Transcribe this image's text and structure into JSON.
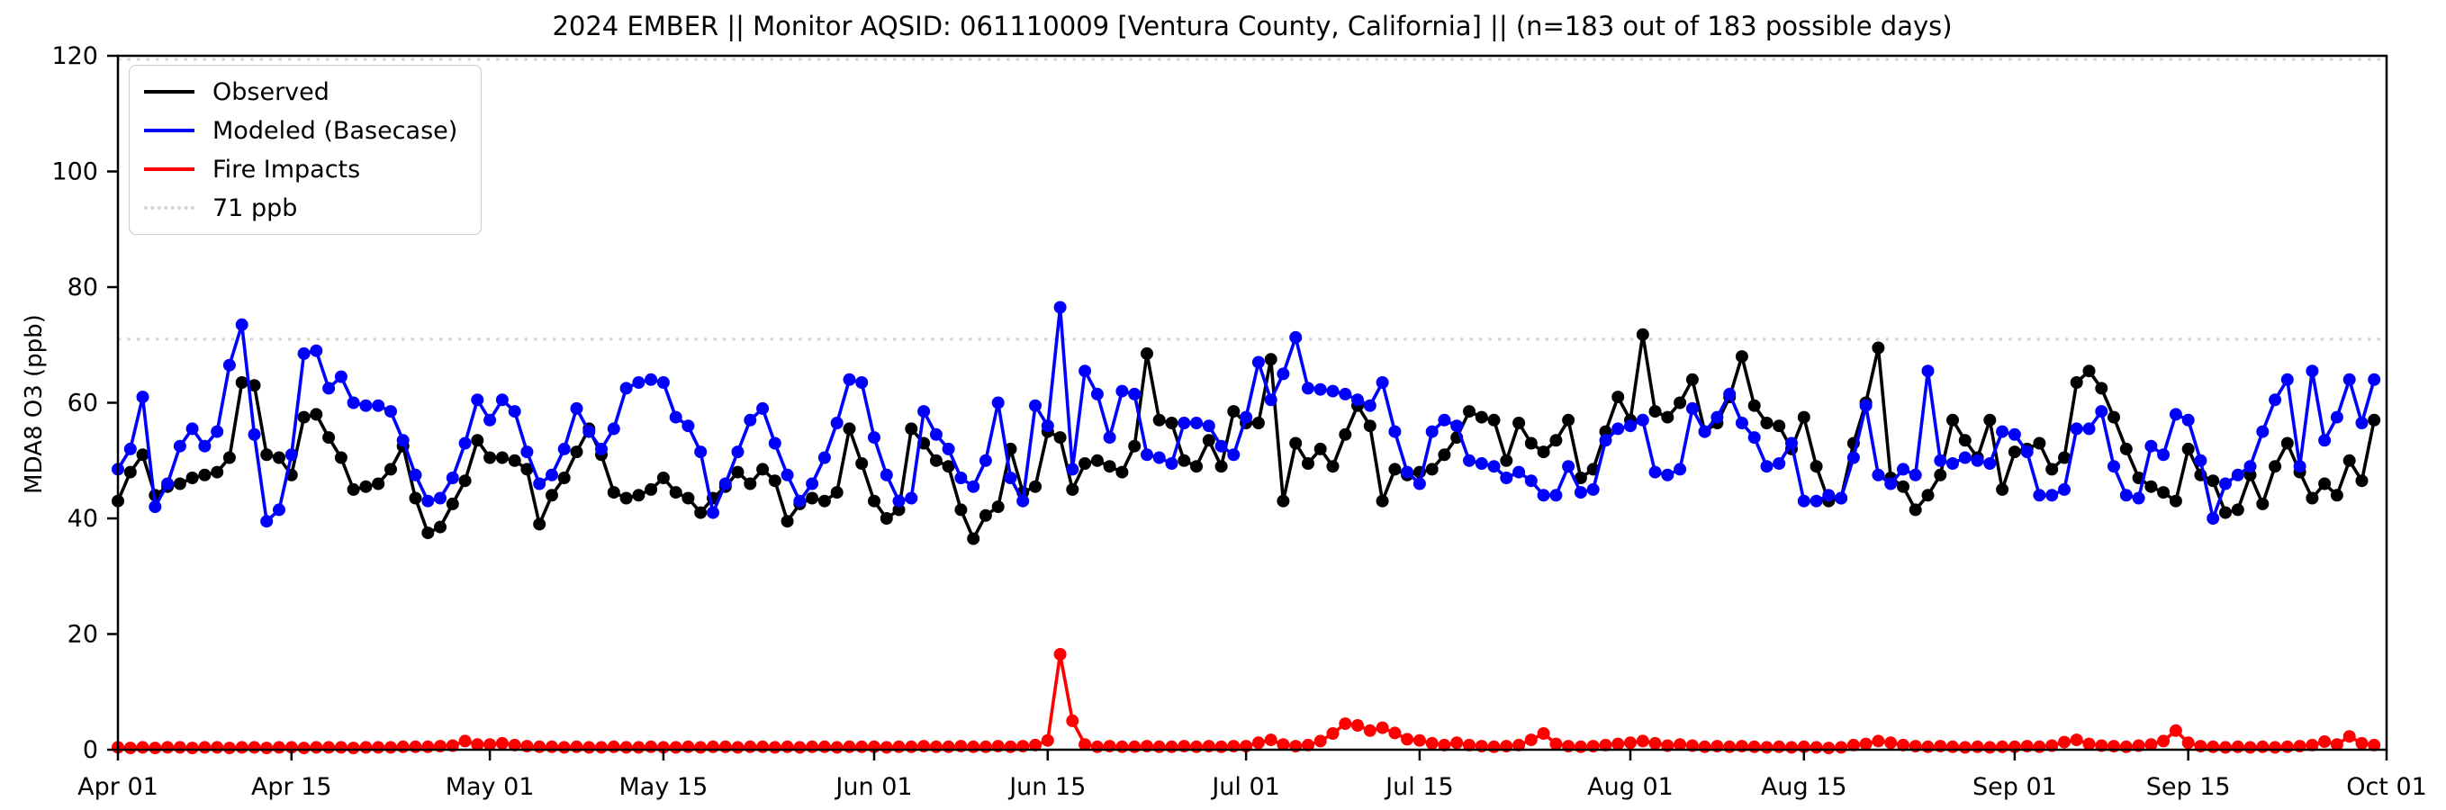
{
  "chart_data": {
    "type": "line",
    "title": "2024 EMBER || Monitor AQSID: 061110009 [Ventura County, California] || (n=183 out of 183 possible days)",
    "ylabel": "MDA8 O3 (ppb)",
    "ylim": [
      0,
      120
    ],
    "yticks": [
      0,
      20,
      40,
      60,
      80,
      100,
      120
    ],
    "n_days": 183,
    "x_tick_days": [
      0,
      14,
      30,
      44,
      61,
      75,
      91,
      105,
      122,
      136,
      153,
      167,
      183
    ],
    "x_tick_labels": [
      "Apr 01",
      "Apr 15",
      "May 01",
      "May 15",
      "Jun 01",
      "Jun 15",
      "Jul 01",
      "Jul 15",
      "Aug 01",
      "Aug 15",
      "Sep 01",
      "Sep 15",
      "Oct 01"
    ],
    "grid": "off",
    "legend_position": "upper-left",
    "threshold": {
      "value": 71,
      "label": "71 ppb",
      "color": "#d3d3d3"
    },
    "series": [
      {
        "name": "Observed",
        "color": "#000000",
        "values": [
          43,
          48,
          51,
          44,
          45.5,
          46,
          47,
          47.5,
          48,
          50.5,
          63.5,
          63,
          51,
          50.5,
          47.5,
          57.5,
          58,
          54,
          50.5,
          45,
          45.5,
          46,
          48.5,
          52.5,
          43.5,
          37.5,
          38.5,
          42.5,
          46.5,
          53.5,
          50.5,
          50.5,
          50,
          48.5,
          39,
          44,
          47,
          51.5,
          55.5,
          51,
          44.5,
          43.5,
          44,
          45,
          47,
          44.5,
          43.5,
          41,
          43.5,
          45.5,
          48,
          46,
          48.5,
          46.5,
          39.5,
          42.5,
          43.5,
          43,
          44.5,
          55.5,
          49.5,
          43,
          40,
          41.5,
          55.5,
          53,
          50,
          49,
          41.5,
          36.5,
          40.5,
          42,
          52,
          44.5,
          45.5,
          55,
          54,
          45,
          49.5,
          50,
          49,
          48,
          52.5,
          68.5,
          57,
          56.5,
          50,
          49,
          53.5,
          49,
          58.5,
          56.5,
          56.5,
          67.5,
          43,
          53,
          49.5,
          52,
          49,
          54.5,
          59.5,
          56,
          43,
          48.5,
          47.5,
          48,
          48.5,
          51,
          54,
          58.5,
          57.5,
          57,
          50,
          56.5,
          53,
          51.5,
          53.5,
          57,
          47,
          48.5,
          55,
          61,
          57,
          71.8,
          58.5,
          57.5,
          60,
          64,
          55,
          56.5,
          61,
          68,
          59.5,
          56.5,
          56,
          52,
          57.5,
          49,
          43,
          43.5,
          53,
          60,
          69.5,
          47,
          45.5,
          41.5,
          44,
          47.5,
          57,
          53.5,
          50.5,
          57,
          45,
          51.5,
          52,
          53,
          48.5,
          50.5,
          63.5,
          65.5,
          62.5,
          57.5,
          52,
          47,
          45.5,
          44.5,
          43,
          52,
          47.5,
          46.5,
          41,
          41.5,
          47.5,
          42.5,
          49,
          53,
          48,
          43.5,
          46,
          44,
          50,
          46.5,
          57
        ]
      },
      {
        "name": "Modeled (Basecase)",
        "color": "#0000ff",
        "values": [
          48.5,
          52,
          61,
          42,
          46,
          52.5,
          55.5,
          52.5,
          55,
          66.5,
          73.5,
          54.5,
          39.5,
          41.5,
          51,
          68.5,
          69,
          62.5,
          64.5,
          60,
          59.5,
          59.5,
          58.5,
          53.5,
          47.5,
          43,
          43.5,
          47,
          53,
          60.5,
          57,
          60.5,
          58.5,
          51.5,
          46,
          47.5,
          52,
          59,
          55,
          52,
          55.5,
          62.5,
          63.5,
          64,
          63.5,
          57.5,
          56,
          51.5,
          41,
          46,
          51.5,
          57,
          59,
          53,
          47.5,
          43,
          46,
          50.5,
          56.5,
          64,
          63.5,
          54,
          47.5,
          43,
          43.5,
          58.5,
          54.5,
          52,
          47,
          45.5,
          50,
          60,
          47,
          43,
          59.5,
          56,
          76.5,
          48.5,
          65.5,
          61.5,
          54,
          62,
          61.5,
          51,
          50.5,
          49.5,
          56.5,
          56.5,
          56,
          52.5,
          51,
          57.5,
          67,
          60.5,
          65,
          71.3,
          62.5,
          62.3,
          62,
          61.5,
          60.5,
          59.5,
          63.5,
          55,
          48,
          46,
          55,
          57,
          56,
          50,
          49.5,
          49,
          47,
          48,
          46.5,
          44,
          44,
          49,
          44.5,
          45,
          53.5,
          55.5,
          56,
          57,
          48,
          47.5,
          48.5,
          59,
          55,
          57.5,
          61.5,
          56.5,
          54,
          49,
          49.5,
          53,
          43,
          43,
          44,
          43.5,
          50.5,
          59.5,
          47.5,
          46,
          48.5,
          47.5,
          65.5,
          50,
          49.5,
          50.5,
          50,
          49.5,
          55,
          54.5,
          51.5,
          44,
          44,
          45,
          55.5,
          55.5,
          58.5,
          49,
          44,
          43.5,
          52.5,
          51,
          58,
          57,
          50,
          40,
          46,
          47.5,
          49,
          55,
          60.5,
          64,
          49,
          65.5,
          53.5,
          57.5,
          64,
          56.5,
          64
        ]
      },
      {
        "name": "Fire Impacts",
        "color": "#ff0000",
        "values": [
          0.4,
          0.3,
          0.4,
          0.3,
          0.4,
          0.4,
          0.3,
          0.4,
          0.4,
          0.3,
          0.4,
          0.4,
          0.3,
          0.4,
          0.4,
          0.3,
          0.4,
          0.4,
          0.4,
          0.3,
          0.4,
          0.4,
          0.4,
          0.5,
          0.5,
          0.5,
          0.6,
          0.7,
          1.5,
          0.9,
          0.9,
          1.1,
          0.8,
          0.6,
          0.5,
          0.5,
          0.4,
          0.5,
          0.4,
          0.4,
          0.5,
          0.4,
          0.4,
          0.5,
          0.4,
          0.4,
          0.5,
          0.4,
          0.5,
          0.5,
          0.4,
          0.5,
          0.5,
          0.4,
          0.5,
          0.4,
          0.5,
          0.5,
          0.4,
          0.5,
          0.5,
          0.5,
          0.4,
          0.5,
          0.5,
          0.6,
          0.5,
          0.5,
          0.6,
          0.5,
          0.5,
          0.6,
          0.5,
          0.6,
          0.8,
          1.6,
          16.5,
          5.0,
          0.9,
          0.5,
          0.6,
          0.5,
          0.5,
          0.6,
          0.5,
          0.5,
          0.6,
          0.5,
          0.6,
          0.5,
          0.6,
          0.6,
          1.2,
          1.7,
          0.9,
          0.6,
          0.8,
          1.5,
          2.8,
          4.5,
          4.2,
          3.3,
          3.8,
          2.9,
          1.8,
          1.6,
          1.1,
          0.8,
          1.2,
          0.8,
          0.6,
          0.5,
          0.6,
          0.8,
          1.7,
          2.8,
          1.0,
          0.6,
          0.5,
          0.6,
          0.8,
          1.0,
          1.2,
          1.5,
          1.1,
          0.7,
          0.9,
          0.7,
          0.5,
          0.6,
          0.5,
          0.6,
          0.5,
          0.4,
          0.5,
          0.4,
          0.5,
          0.4,
          0.3,
          0.4,
          0.8,
          1.0,
          1.5,
          1.2,
          0.8,
          0.6,
          0.5,
          0.6,
          0.5,
          0.4,
          0.5,
          0.4,
          0.5,
          0.5,
          0.6,
          0.5,
          0.7,
          1.3,
          1.7,
          1.0,
          0.7,
          0.6,
          0.5,
          0.7,
          0.9,
          1.5,
          3.3,
          1.2,
          0.6,
          0.5,
          0.4,
          0.5,
          0.4,
          0.5,
          0.4,
          0.5,
          0.6,
          0.8,
          1.4,
          0.9,
          2.3,
          1.1,
          0.8
        ]
      }
    ]
  },
  "legend": {
    "items": [
      {
        "id": "observed",
        "label": "Observed",
        "color": "#000000",
        "style": "solid"
      },
      {
        "id": "modeled",
        "label": "Modeled (Basecase)",
        "color": "#0000ff",
        "style": "solid"
      },
      {
        "id": "fire-impacts",
        "label": "Fire Impacts",
        "color": "#ff0000",
        "style": "solid"
      },
      {
        "id": "threshold-71ppb",
        "label": "71 ppb",
        "color": "#d3d3d3",
        "style": "dotted"
      }
    ]
  },
  "colors": {
    "axis": "#000000",
    "background": "#ffffff",
    "threshold": "#d3d3d3"
  }
}
